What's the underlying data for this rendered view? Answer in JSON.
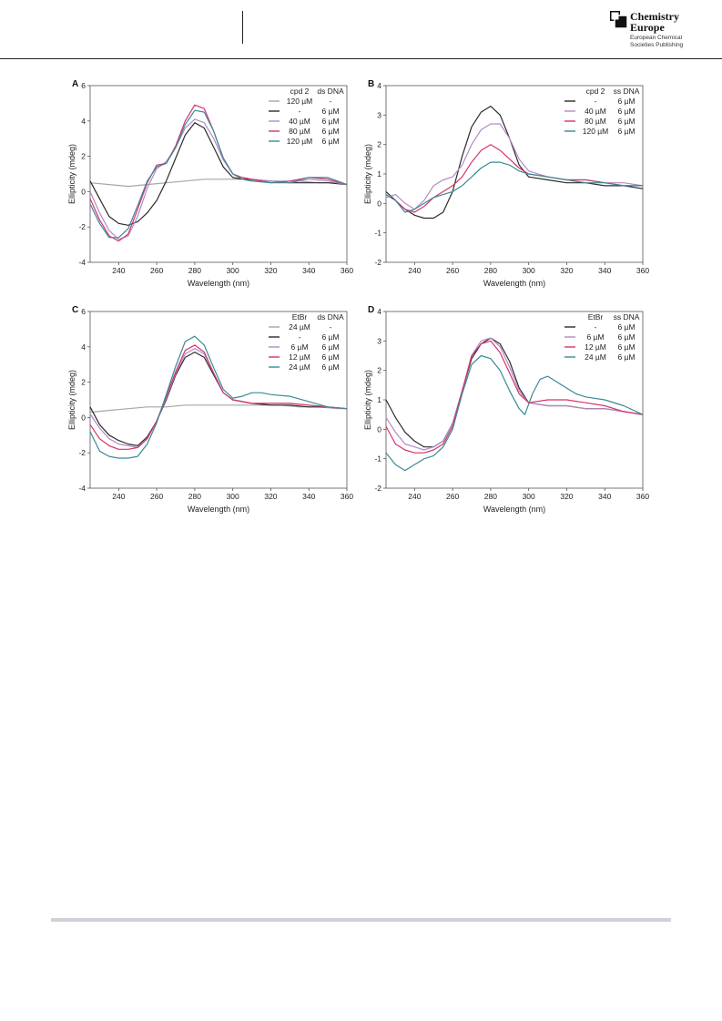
{
  "header": {
    "brand_name_line1": "Chemistry",
    "brand_name_line2": "Europe",
    "brand_sub_line1": "European Chemical",
    "brand_sub_line2": "Societies Publishing"
  },
  "chart_data": [
    {
      "type": "line",
      "panel_label": "A",
      "xlabel": "Wavelength (nm)",
      "ylabel": "Ellipticity (mdeg)",
      "xlim": [
        225,
        360
      ],
      "ylim": [
        -4,
        6
      ],
      "xticks": [
        240,
        260,
        280,
        300,
        320,
        340,
        360
      ],
      "yticks": [
        -4,
        -2,
        0,
        2,
        4,
        6
      ],
      "legend_header": [
        "cpd 2",
        "ds DNA"
      ],
      "series": [
        {
          "name": "120 µM / -",
          "label": [
            "120 µM",
            "-"
          ],
          "color": "#a6a6a6",
          "x": [
            225,
            235,
            245,
            255,
            265,
            275,
            285,
            295,
            305,
            315,
            325,
            335,
            345,
            355,
            360
          ],
          "y": [
            0.5,
            0.4,
            0.3,
            0.4,
            0.5,
            0.6,
            0.7,
            0.7,
            0.7,
            0.6,
            0.6,
            0.6,
            0.5,
            0.5,
            0.4
          ]
        },
        {
          "name": "- / 6 µM",
          "label": [
            "-",
            "6 µM"
          ],
          "color": "#2b2b2b",
          "x": [
            225,
            230,
            235,
            240,
            245,
            250,
            255,
            260,
            265,
            270,
            275,
            280,
            285,
            290,
            295,
            300,
            305,
            310,
            320,
            330,
            340,
            350,
            360
          ],
          "y": [
            0.6,
            -0.4,
            -1.4,
            -1.8,
            -1.9,
            -1.7,
            -1.2,
            -0.5,
            0.6,
            1.9,
            3.2,
            3.9,
            3.6,
            2.5,
            1.4,
            0.8,
            0.7,
            0.7,
            0.6,
            0.5,
            0.5,
            0.5,
            0.4
          ]
        },
        {
          "name": "40 µM / 6 µM",
          "label": [
            "40 µM",
            "6 µM"
          ],
          "color": "#b48ac8",
          "x": [
            225,
            230,
            235,
            240,
            245,
            250,
            255,
            260,
            265,
            270,
            275,
            280,
            285,
            290,
            295,
            300,
            305,
            310,
            320,
            330,
            340,
            350,
            360
          ],
          "y": [
            0.0,
            -1.2,
            -2.2,
            -2.7,
            -2.5,
            -1.4,
            0.2,
            1.3,
            1.7,
            2.5,
            3.6,
            4.1,
            3.9,
            3.0,
            1.8,
            1.0,
            0.8,
            0.7,
            0.6,
            0.5,
            0.7,
            0.6,
            0.4
          ]
        },
        {
          "name": "80 µM / 6 µM",
          "label": [
            "80 µM",
            "6 µM"
          ],
          "color": "#d6336c",
          "x": [
            225,
            230,
            235,
            240,
            245,
            250,
            255,
            260,
            265,
            270,
            275,
            280,
            285,
            290,
            295,
            300,
            305,
            310,
            320,
            330,
            340,
            350,
            360
          ],
          "y": [
            -0.4,
            -1.6,
            -2.5,
            -2.8,
            -2.4,
            -1.0,
            0.5,
            1.5,
            1.6,
            2.6,
            4.0,
            4.9,
            4.7,
            3.4,
            1.9,
            1.0,
            0.8,
            0.7,
            0.5,
            0.6,
            0.8,
            0.7,
            0.4
          ]
        },
        {
          "name": "120 µM / 6 µM",
          "label": [
            "120 µM",
            "6 µM"
          ],
          "color": "#3a8a96",
          "x": [
            225,
            230,
            235,
            240,
            245,
            250,
            255,
            260,
            265,
            270,
            275,
            280,
            285,
            290,
            295,
            300,
            305,
            310,
            320,
            330,
            340,
            350,
            360
          ],
          "y": [
            -0.7,
            -1.8,
            -2.6,
            -2.6,
            -2.1,
            -0.8,
            0.6,
            1.4,
            1.6,
            2.5,
            3.8,
            4.6,
            4.5,
            3.4,
            1.9,
            1.0,
            0.7,
            0.6,
            0.5,
            0.5,
            0.8,
            0.8,
            0.4
          ]
        }
      ]
    },
    {
      "type": "line",
      "panel_label": "B",
      "xlabel": "Wavelength (nm)",
      "ylabel": "Ellipticity (mdeg)",
      "xlim": [
        225,
        360
      ],
      "ylim": [
        -2,
        4
      ],
      "xticks": [
        240,
        260,
        280,
        300,
        320,
        340,
        360
      ],
      "yticks": [
        -2,
        -1,
        0,
        1,
        2,
        3,
        4
      ],
      "legend_header": [
        "cpd 2",
        "ss DNA"
      ],
      "series": [
        {
          "name": "- / 6 µM",
          "label": [
            "-",
            "6 µM"
          ],
          "color": "#2b2b2b",
          "x": [
            225,
            230,
            235,
            240,
            245,
            250,
            255,
            260,
            265,
            270,
            275,
            280,
            285,
            290,
            295,
            300,
            310,
            320,
            330,
            340,
            350,
            360
          ],
          "y": [
            0.4,
            0.1,
            -0.2,
            -0.4,
            -0.5,
            -0.5,
            -0.3,
            0.4,
            1.6,
            2.6,
            3.1,
            3.3,
            3.0,
            2.2,
            1.3,
            0.9,
            0.8,
            0.7,
            0.7,
            0.6,
            0.6,
            0.5
          ]
        },
        {
          "name": "40 µM / 6 µM",
          "label": [
            "40 µM",
            "6 µM"
          ],
          "color": "#b48ac8",
          "x": [
            225,
            230,
            235,
            240,
            245,
            250,
            255,
            260,
            265,
            270,
            275,
            280,
            285,
            290,
            295,
            300,
            310,
            320,
            330,
            340,
            350,
            360
          ],
          "y": [
            0.2,
            0.3,
            0.0,
            -0.2,
            0.1,
            0.6,
            0.8,
            0.9,
            1.3,
            2.0,
            2.5,
            2.7,
            2.7,
            2.2,
            1.5,
            1.1,
            0.9,
            0.8,
            0.8,
            0.7,
            0.7,
            0.6
          ]
        },
        {
          "name": "80 µM / 6 µM",
          "label": [
            "80 µM",
            "6 µM"
          ],
          "color": "#d6336c",
          "x": [
            225,
            230,
            235,
            240,
            245,
            250,
            255,
            260,
            265,
            270,
            275,
            280,
            285,
            290,
            295,
            300,
            310,
            320,
            330,
            340,
            350,
            360
          ],
          "y": [
            0.3,
            0.1,
            -0.2,
            -0.3,
            -0.1,
            0.2,
            0.4,
            0.6,
            0.9,
            1.4,
            1.8,
            2.0,
            1.8,
            1.5,
            1.2,
            1.0,
            0.9,
            0.8,
            0.8,
            0.7,
            0.6,
            0.6
          ]
        },
        {
          "name": "120 µM / 6 µM",
          "label": [
            "120 µM",
            "6 µM"
          ],
          "color": "#3a8a96",
          "x": [
            225,
            230,
            235,
            240,
            245,
            250,
            255,
            260,
            265,
            270,
            275,
            280,
            285,
            290,
            295,
            300,
            310,
            320,
            330,
            340,
            350,
            360
          ],
          "y": [
            0.3,
            0.1,
            -0.3,
            -0.2,
            0.0,
            0.2,
            0.3,
            0.4,
            0.6,
            0.9,
            1.2,
            1.4,
            1.4,
            1.3,
            1.1,
            1.0,
            0.9,
            0.8,
            0.7,
            0.7,
            0.6,
            0.6
          ]
        }
      ]
    },
    {
      "type": "line",
      "panel_label": "C",
      "xlabel": "Wavelength (nm)",
      "ylabel": "Ellipticity (mdeg)",
      "xlim": [
        225,
        360
      ],
      "ylim": [
        -4,
        6
      ],
      "xticks": [
        240,
        260,
        280,
        300,
        320,
        340,
        360
      ],
      "yticks": [
        -4,
        -2,
        0,
        2,
        4,
        6
      ],
      "legend_header": [
        "EtBr",
        "ds DNA"
      ],
      "series": [
        {
          "name": "24 µM / -",
          "label": [
            "24 µM",
            "-"
          ],
          "color": "#a6a6a6",
          "x": [
            225,
            235,
            245,
            255,
            265,
            275,
            285,
            295,
            305,
            315,
            325,
            335,
            345,
            355,
            360
          ],
          "y": [
            0.3,
            0.4,
            0.5,
            0.6,
            0.6,
            0.7,
            0.7,
            0.7,
            0.7,
            0.7,
            0.7,
            0.6,
            0.6,
            0.5,
            0.5
          ]
        },
        {
          "name": "- / 6 µM",
          "label": [
            "-",
            "6 µM"
          ],
          "color": "#2b2b2b",
          "x": [
            225,
            230,
            235,
            240,
            245,
            250,
            255,
            260,
            265,
            270,
            275,
            280,
            285,
            290,
            295,
            300,
            310,
            320,
            330,
            340,
            350,
            360
          ],
          "y": [
            0.6,
            -0.4,
            -1.0,
            -1.3,
            -1.5,
            -1.6,
            -1.1,
            -0.2,
            1.0,
            2.4,
            3.4,
            3.7,
            3.4,
            2.4,
            1.4,
            1.0,
            0.8,
            0.7,
            0.7,
            0.6,
            0.6,
            0.5
          ]
        },
        {
          "name": "6 µM / 6 µM",
          "label": [
            "6 µM",
            "6 µM"
          ],
          "color": "#b48ac8",
          "x": [
            225,
            230,
            235,
            240,
            245,
            250,
            255,
            260,
            265,
            270,
            275,
            280,
            285,
            290,
            295,
            300,
            310,
            320,
            330,
            340,
            350,
            360
          ],
          "y": [
            0.2,
            -0.6,
            -1.2,
            -1.5,
            -1.6,
            -1.7,
            -1.2,
            -0.2,
            1.1,
            2.5,
            3.6,
            3.9,
            3.6,
            2.5,
            1.4,
            1.0,
            0.8,
            0.8,
            0.8,
            0.7,
            0.6,
            0.5
          ]
        },
        {
          "name": "12 µM / 6 µM",
          "label": [
            "12 µM",
            "6 µM"
          ],
          "color": "#d6336c",
          "x": [
            225,
            230,
            235,
            240,
            245,
            250,
            255,
            260,
            265,
            270,
            275,
            280,
            285,
            290,
            295,
            300,
            310,
            320,
            330,
            340,
            350,
            360
          ],
          "y": [
            -0.4,
            -1.2,
            -1.6,
            -1.8,
            -1.8,
            -1.7,
            -1.2,
            -0.2,
            1.2,
            2.6,
            3.8,
            4.1,
            3.7,
            2.5,
            1.4,
            1.0,
            0.8,
            0.8,
            0.8,
            0.7,
            0.6,
            0.5
          ]
        },
        {
          "name": "24 µM / 6 µM",
          "label": [
            "24 µM",
            "6 µM"
          ],
          "color": "#3a8a96",
          "x": [
            225,
            230,
            235,
            240,
            245,
            250,
            255,
            260,
            265,
            270,
            275,
            280,
            285,
            290,
            295,
            300,
            305,
            310,
            315,
            320,
            330,
            340,
            350,
            360
          ],
          "y": [
            -0.8,
            -1.9,
            -2.2,
            -2.3,
            -2.3,
            -2.2,
            -1.5,
            -0.3,
            1.3,
            2.9,
            4.3,
            4.6,
            4.1,
            2.8,
            1.6,
            1.1,
            1.2,
            1.4,
            1.4,
            1.3,
            1.2,
            0.9,
            0.6,
            0.5
          ]
        }
      ]
    },
    {
      "type": "line",
      "panel_label": "D",
      "xlabel": "Wavelength (nm)",
      "ylabel": "Ellipticity (mdeg)",
      "xlim": [
        225,
        360
      ],
      "ylim": [
        -2,
        4
      ],
      "xticks": [
        240,
        260,
        280,
        300,
        320,
        340,
        360
      ],
      "yticks": [
        -2,
        -1,
        0,
        1,
        2,
        3,
        4
      ],
      "legend_header": [
        "EtBr",
        "ss DNA"
      ],
      "series": [
        {
          "name": "- / 6 µM",
          "label": [
            "-",
            "6 µM"
          ],
          "color": "#2b2b2b",
          "x": [
            225,
            230,
            235,
            240,
            245,
            250,
            255,
            260,
            265,
            270,
            275,
            280,
            285,
            290,
            295,
            300,
            310,
            320,
            330,
            340,
            350,
            360
          ],
          "y": [
            1.0,
            0.4,
            -0.1,
            -0.4,
            -0.6,
            -0.6,
            -0.4,
            0.2,
            1.3,
            2.4,
            2.9,
            3.1,
            2.9,
            2.3,
            1.4,
            0.9,
            0.8,
            0.8,
            0.7,
            0.7,
            0.6,
            0.5
          ]
        },
        {
          "name": "6 µM / 6 µM",
          "label": [
            "6 µM",
            "6 µM"
          ],
          "color": "#b48ac8",
          "x": [
            225,
            230,
            235,
            240,
            245,
            250,
            255,
            260,
            265,
            270,
            275,
            280,
            285,
            290,
            295,
            300,
            310,
            320,
            330,
            340,
            350,
            360
          ],
          "y": [
            0.4,
            -0.1,
            -0.5,
            -0.6,
            -0.7,
            -0.6,
            -0.4,
            0.2,
            1.3,
            2.5,
            3.0,
            3.1,
            2.8,
            2.1,
            1.3,
            0.9,
            0.8,
            0.8,
            0.7,
            0.7,
            0.6,
            0.5
          ]
        },
        {
          "name": "12 µM / 6 µM",
          "label": [
            "12 µM",
            "6 µM"
          ],
          "color": "#d6336c",
          "x": [
            225,
            230,
            235,
            240,
            245,
            250,
            255,
            260,
            265,
            270,
            275,
            280,
            285,
            290,
            295,
            300,
            310,
            320,
            330,
            340,
            350,
            360
          ],
          "y": [
            0.1,
            -0.5,
            -0.7,
            -0.8,
            -0.8,
            -0.7,
            -0.5,
            0.1,
            1.3,
            2.5,
            2.9,
            3.0,
            2.6,
            1.9,
            1.2,
            0.9,
            1.0,
            1.0,
            0.9,
            0.8,
            0.6,
            0.5
          ]
        },
        {
          "name": "24 µM / 6 µM",
          "label": [
            "24 µM",
            "6 µM"
          ],
          "color": "#3a8a96",
          "x": [
            225,
            230,
            235,
            240,
            245,
            250,
            255,
            260,
            265,
            270,
            275,
            280,
            285,
            290,
            295,
            298,
            302,
            306,
            310,
            315,
            320,
            325,
            330,
            340,
            350,
            360
          ],
          "y": [
            -0.8,
            -1.2,
            -1.4,
            -1.2,
            -1.0,
            -0.9,
            -0.6,
            0.0,
            1.2,
            2.2,
            2.5,
            2.4,
            2.0,
            1.3,
            0.7,
            0.5,
            1.2,
            1.7,
            1.8,
            1.6,
            1.4,
            1.2,
            1.1,
            1.0,
            0.8,
            0.5
          ]
        }
      ]
    }
  ]
}
